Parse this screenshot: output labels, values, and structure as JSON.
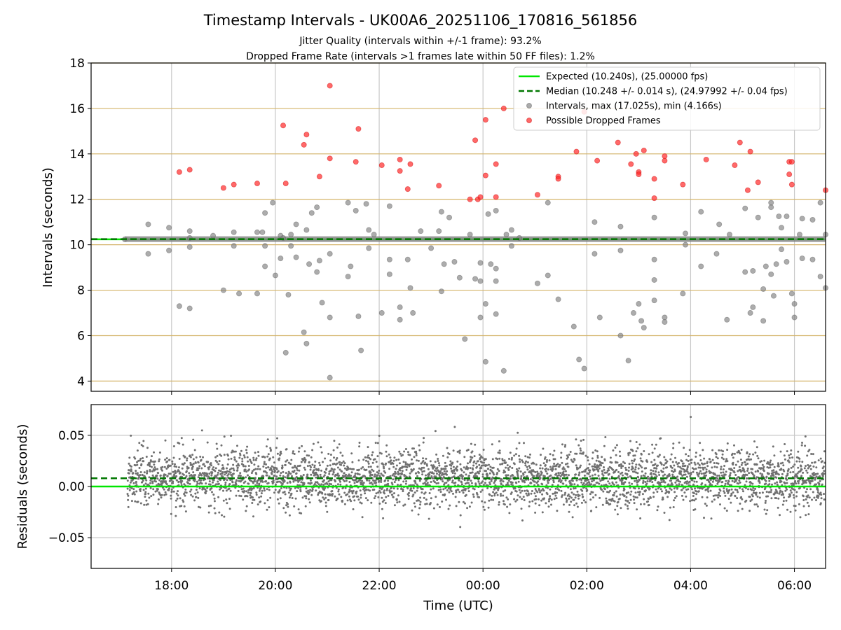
{
  "figure": {
    "title": "Timestamp Intervals - UK00A6_20251106_170816_561856",
    "subtitle_1": "Jitter Quality (intervals within +/-1 frame): 93.2%",
    "subtitle_2": "Dropped Frame Rate (intervals >1 frames late within 50 FF files): 1.2%",
    "xlabel": "Time (UTC)"
  },
  "colors": {
    "expected": "#00e600",
    "median": "#007700",
    "intervals": "#808080",
    "dropped": "#ff2a2a",
    "hgrid": "#d4b46a",
    "vgrid": "#c8c8c8"
  },
  "chart_data": [
    {
      "type": "scatter",
      "name": "intervals",
      "ylabel": "Intervals (seconds)",
      "ylim": [
        3.55,
        18
      ],
      "yticks": [
        4,
        6,
        8,
        10,
        12,
        14,
        16,
        18
      ],
      "xlim_hours": [
        16.45,
        30.6
      ],
      "xticks": [
        {
          "h": 18,
          "label": "18:00"
        },
        {
          "h": 20,
          "label": "20:00"
        },
        {
          "h": 22,
          "label": "22:00"
        },
        {
          "h": 24,
          "label": "00:00"
        },
        {
          "h": 26,
          "label": "02:00"
        },
        {
          "h": 28,
          "label": "04:00"
        },
        {
          "h": 30,
          "label": "06:00"
        }
      ],
      "lines": [
        {
          "name": "expected",
          "y": 10.24
        },
        {
          "name": "median",
          "y": 10.248
        }
      ],
      "legend": [
        {
          "kind": "line",
          "label": "Expected (10.240s), (25.00000 fps)"
        },
        {
          "kind": "dash",
          "label": "Median (10.248 +/- 0.014 s), (24.97992 +/- 0.04 fps)"
        },
        {
          "kind": "gray",
          "label": "Intervals, max (17.025s), min (4.166s)"
        },
        {
          "kind": "red",
          "label": "Possible Dropped Frames"
        }
      ],
      "legend_position": "upper right",
      "dropped_frames": [
        [
          18.15,
          13.2
        ],
        [
          18.35,
          13.3
        ],
        [
          19.0,
          12.5
        ],
        [
          19.2,
          12.65
        ],
        [
          19.65,
          12.7
        ],
        [
          20.15,
          15.25
        ],
        [
          20.2,
          12.7
        ],
        [
          20.55,
          14.4
        ],
        [
          20.6,
          14.85
        ],
        [
          20.85,
          13.0
        ],
        [
          21.05,
          17.0
        ],
        [
          21.05,
          13.8
        ],
        [
          21.55,
          13.65
        ],
        [
          21.6,
          15.1
        ],
        [
          22.05,
          13.5
        ],
        [
          22.4,
          13.75
        ],
        [
          22.4,
          13.25
        ],
        [
          22.55,
          12.45
        ],
        [
          22.6,
          13.55
        ],
        [
          23.15,
          12.6
        ],
        [
          23.75,
          12.0
        ],
        [
          23.9,
          12.0
        ],
        [
          23.95,
          12.1
        ],
        [
          23.85,
          14.6
        ],
        [
          24.05,
          13.05
        ],
        [
          24.05,
          15.5
        ],
        [
          24.25,
          12.1
        ],
        [
          24.25,
          13.55
        ],
        [
          24.4,
          16.0
        ],
        [
          25.05,
          12.2
        ],
        [
          25.45,
          13.0
        ],
        [
          25.45,
          12.9
        ],
        [
          25.8,
          14.1
        ],
        [
          26.2,
          13.7
        ],
        [
          25.95,
          15.85
        ],
        [
          26.6,
          14.5
        ],
        [
          26.85,
          13.55
        ],
        [
          26.95,
          14.0
        ],
        [
          27.0,
          13.2
        ],
        [
          27.0,
          13.1
        ],
        [
          27.1,
          14.15
        ],
        [
          27.3,
          12.05
        ],
        [
          27.3,
          12.9
        ],
        [
          27.5,
          13.9
        ],
        [
          27.5,
          13.7
        ],
        [
          27.85,
          12.65
        ],
        [
          28.3,
          13.75
        ],
        [
          28.85,
          13.5
        ],
        [
          28.95,
          14.5
        ],
        [
          29.1,
          12.4
        ],
        [
          29.15,
          14.1
        ],
        [
          29.3,
          12.75
        ],
        [
          29.9,
          13.65
        ],
        [
          29.9,
          13.1
        ],
        [
          29.95,
          13.65
        ],
        [
          29.95,
          12.65
        ],
        [
          30.6,
          12.4
        ]
      ],
      "intervals_outliers": [
        [
          17.55,
          10.9
        ],
        [
          17.55,
          9.6
        ],
        [
          17.95,
          10.75
        ],
        [
          17.95,
          9.75
        ],
        [
          18.15,
          7.3
        ],
        [
          18.35,
          7.2
        ],
        [
          18.35,
          10.3
        ],
        [
          18.35,
          10.6
        ],
        [
          18.35,
          9.9
        ],
        [
          18.8,
          10.4
        ],
        [
          19.0,
          8.0
        ],
        [
          19.2,
          10.55
        ],
        [
          19.2,
          9.95
        ],
        [
          19.3,
          7.85
        ],
        [
          19.65,
          10.55
        ],
        [
          19.65,
          7.85
        ],
        [
          19.75,
          10.55
        ],
        [
          19.8,
          11.4
        ],
        [
          19.8,
          9.05
        ],
        [
          19.8,
          9.95
        ],
        [
          19.95,
          11.85
        ],
        [
          20.0,
          8.65
        ],
        [
          20.1,
          10.4
        ],
        [
          20.1,
          9.4
        ],
        [
          20.15,
          10.3
        ],
        [
          20.2,
          5.25
        ],
        [
          20.25,
          7.8
        ],
        [
          20.3,
          10.45
        ],
        [
          20.3,
          9.95
        ],
        [
          20.4,
          10.9
        ],
        [
          20.4,
          9.45
        ],
        [
          20.55,
          6.15
        ],
        [
          20.6,
          5.65
        ],
        [
          20.6,
          10.65
        ],
        [
          20.65,
          9.15
        ],
        [
          20.7,
          11.4
        ],
        [
          20.8,
          11.65
        ],
        [
          20.8,
          8.8
        ],
        [
          20.85,
          9.3
        ],
        [
          20.9,
          7.45
        ],
        [
          21.05,
          9.6
        ],
        [
          21.05,
          6.8
        ],
        [
          21.05,
          4.15
        ],
        [
          21.4,
          11.85
        ],
        [
          21.45,
          9.05
        ],
        [
          21.4,
          8.6
        ],
        [
          21.55,
          11.5
        ],
        [
          21.6,
          6.85
        ],
        [
          21.65,
          5.35
        ],
        [
          21.75,
          11.8
        ],
        [
          21.8,
          10.65
        ],
        [
          21.8,
          9.85
        ],
        [
          21.9,
          10.45
        ],
        [
          22.05,
          7.0
        ],
        [
          22.2,
          11.7
        ],
        [
          22.2,
          9.35
        ],
        [
          22.2,
          8.7
        ],
        [
          22.4,
          7.25
        ],
        [
          22.4,
          6.7
        ],
        [
          22.55,
          9.35
        ],
        [
          22.6,
          8.1
        ],
        [
          22.65,
          7.0
        ],
        [
          22.8,
          10.6
        ],
        [
          23.0,
          9.85
        ],
        [
          23.15,
          10.6
        ],
        [
          23.2,
          11.45
        ],
        [
          23.2,
          7.95
        ],
        [
          23.25,
          9.15
        ],
        [
          23.35,
          11.2
        ],
        [
          23.45,
          9.25
        ],
        [
          23.55,
          8.55
        ],
        [
          23.65,
          5.85
        ],
        [
          23.75,
          10.45
        ],
        [
          23.85,
          8.5
        ],
        [
          23.95,
          9.2
        ],
        [
          23.95,
          8.4
        ],
        [
          23.95,
          6.8
        ],
        [
          24.05,
          7.4
        ],
        [
          24.05,
          4.85
        ],
        [
          24.1,
          11.35
        ],
        [
          24.15,
          9.15
        ],
        [
          24.25,
          11.5
        ],
        [
          24.25,
          8.95
        ],
        [
          24.25,
          8.4
        ],
        [
          24.25,
          6.95
        ],
        [
          24.4,
          4.45
        ],
        [
          24.45,
          10.45
        ],
        [
          24.55,
          10.65
        ],
        [
          24.55,
          9.95
        ],
        [
          24.7,
          10.3
        ],
        [
          25.05,
          8.3
        ],
        [
          25.25,
          11.85
        ],
        [
          25.25,
          8.65
        ],
        [
          25.45,
          7.6
        ],
        [
          25.75,
          6.4
        ],
        [
          25.85,
          4.95
        ],
        [
          25.95,
          4.55
        ],
        [
          26.15,
          11.0
        ],
        [
          26.15,
          9.6
        ],
        [
          26.25,
          6.8
        ],
        [
          26.65,
          6.0
        ],
        [
          26.65,
          10.8
        ],
        [
          26.65,
          9.75
        ],
        [
          26.8,
          4.9
        ],
        [
          26.9,
          7.0
        ],
        [
          27.0,
          7.4
        ],
        [
          27.05,
          6.65
        ],
        [
          27.1,
          6.35
        ],
        [
          27.3,
          11.2
        ],
        [
          27.3,
          9.35
        ],
        [
          27.3,
          8.45
        ],
        [
          27.3,
          7.55
        ],
        [
          27.5,
          6.8
        ],
        [
          27.5,
          6.6
        ],
        [
          27.85,
          7.85
        ],
        [
          27.9,
          10.5
        ],
        [
          27.9,
          10.0
        ],
        [
          28.2,
          11.45
        ],
        [
          28.2,
          9.05
        ],
        [
          28.55,
          10.9
        ],
        [
          28.5,
          9.6
        ],
        [
          28.7,
          6.7
        ],
        [
          28.75,
          10.45
        ],
        [
          29.05,
          11.6
        ],
        [
          29.05,
          8.8
        ],
        [
          29.15,
          7.0
        ],
        [
          29.2,
          7.25
        ],
        [
          29.2,
          8.85
        ],
        [
          29.3,
          11.2
        ],
        [
          29.4,
          6.65
        ],
        [
          29.4,
          8.05
        ],
        [
          29.45,
          9.05
        ],
        [
          29.55,
          11.65
        ],
        [
          29.55,
          11.85
        ],
        [
          29.55,
          8.7
        ],
        [
          29.6,
          7.75
        ],
        [
          29.65,
          9.15
        ],
        [
          29.7,
          11.25
        ],
        [
          29.75,
          9.8
        ],
        [
          29.75,
          10.75
        ],
        [
          29.85,
          11.25
        ],
        [
          29.85,
          9.25
        ],
        [
          29.95,
          7.85
        ],
        [
          30.0,
          7.4
        ],
        [
          30.0,
          6.8
        ],
        [
          30.1,
          10.45
        ],
        [
          30.15,
          11.15
        ],
        [
          30.15,
          9.4
        ],
        [
          30.35,
          11.1
        ],
        [
          30.35,
          9.35
        ],
        [
          30.5,
          11.85
        ],
        [
          30.5,
          8.6
        ],
        [
          30.6,
          10.45
        ],
        [
          30.6,
          8.1
        ]
      ]
    },
    {
      "type": "scatter",
      "name": "residuals",
      "ylabel": "Residuals (seconds)",
      "ylim": [
        -0.08,
        0.08
      ],
      "yticks": [
        {
          "v": 0.05,
          "label": "0.05"
        },
        {
          "v": 0.0,
          "label": "0.00"
        },
        {
          "v": -0.05,
          "label": "−0.05"
        }
      ],
      "lines": [
        {
          "name": "expected",
          "y": 0.0
        },
        {
          "name": "median",
          "y": 0.008
        }
      ],
      "point_count": 4000,
      "x_start_hours": 17.15,
      "x_end_hours": 30.65,
      "residual_mean": 0.008,
      "residual_std": 0.014
    }
  ]
}
